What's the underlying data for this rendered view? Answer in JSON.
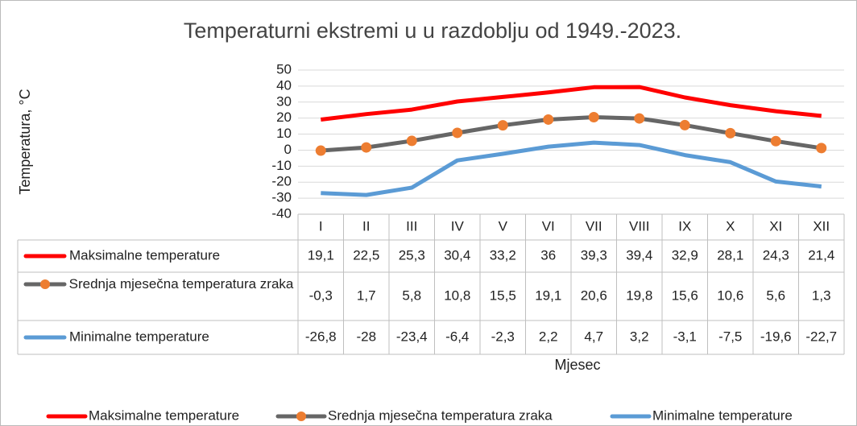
{
  "chart_data": {
    "type": "line",
    "title": "Temperaturni ekstremi u u razdoblju od 1949.-2023.",
    "ylabel": "Temperatura, °C",
    "xlabel": "Mjesec",
    "categories": [
      "I",
      "II",
      "III",
      "IV",
      "V",
      "VI",
      "VII",
      "VIII",
      "IX",
      "X",
      "XI",
      "XII"
    ],
    "ylim": [
      -40,
      50
    ],
    "yticks": [
      -40,
      -30,
      -20,
      -10,
      0,
      10,
      20,
      30,
      40,
      50
    ],
    "grid": true,
    "legend": "bottom",
    "series": [
      {
        "name": "Maksimalne temperature",
        "color": "#ff0000",
        "values": [
          19.1,
          22.5,
          25.3,
          30.4,
          33.2,
          36,
          39.3,
          39.4,
          32.9,
          28.1,
          24.3,
          21.4
        ],
        "value_labels": [
          "19,1",
          "22,5",
          "25,3",
          "30,4",
          "33,2",
          "36",
          "39,3",
          "39,4",
          "32,9",
          "28,1",
          "24,3",
          "21,4"
        ]
      },
      {
        "name": "Srednja mjesečna temperatura zraka",
        "color": "#666666",
        "marker_color": "#ed7d31",
        "values": [
          -0.3,
          1.7,
          5.8,
          10.8,
          15.5,
          19.1,
          20.6,
          19.8,
          15.6,
          10.6,
          5.6,
          1.3
        ],
        "value_labels": [
          "-0,3",
          "1,7",
          "5,8",
          "10,8",
          "15,5",
          "19,1",
          "20,6",
          "19,8",
          "15,6",
          "10,6",
          "5,6",
          "1,3"
        ]
      },
      {
        "name": "Minimalne temperature",
        "color": "#5b9bd5",
        "values": [
          -26.8,
          -28,
          -23.4,
          -6.4,
          -2.3,
          2.2,
          4.7,
          3.2,
          -3.1,
          -7.5,
          -19.6,
          -22.7
        ],
        "value_labels": [
          "-26,8",
          "-28",
          "-23,4",
          "-6,4",
          "-2,3",
          "2,2",
          "4,7",
          "3,2",
          "-3,1",
          "-7,5",
          "-19,6",
          "-22,7"
        ]
      }
    ]
  }
}
